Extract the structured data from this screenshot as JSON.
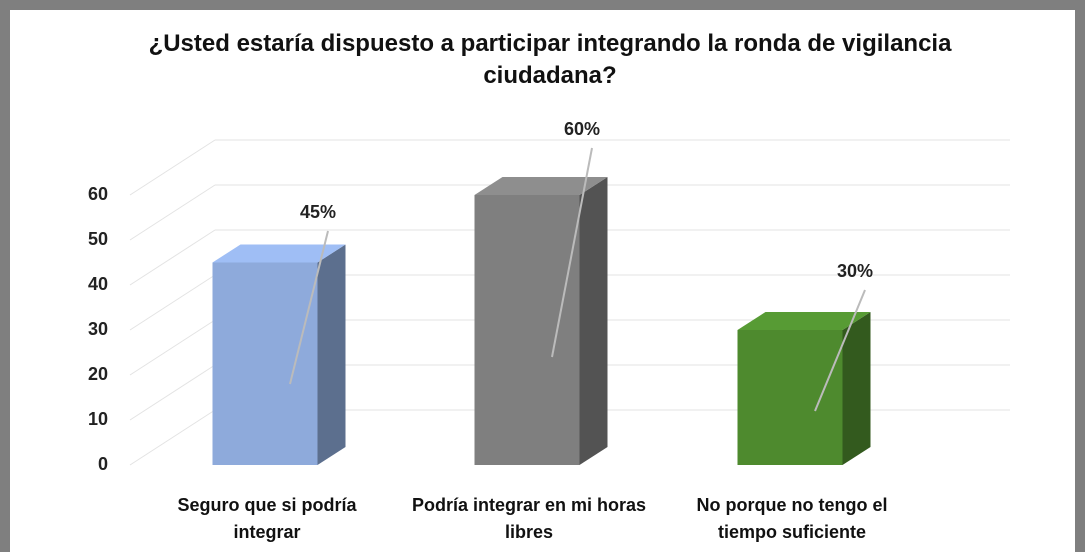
{
  "chart_data": {
    "type": "bar3d",
    "title": "¿Usted estaría dispuesto a participar integrando la ronda de vigilancia ciudadana?",
    "categories": [
      "Seguro que si podría integrar",
      "Podría integrar en mi horas libres",
      "No porque no tengo el tiempo suficiente"
    ],
    "values": [
      45,
      60,
      30
    ],
    "value_labels": [
      "45%",
      "60%",
      "30%"
    ],
    "colors": [
      "#8eaadb",
      "#7f7f7f",
      "#4e8a2e"
    ],
    "ylim": [
      0,
      60
    ],
    "yticks": [
      0,
      10,
      20,
      30,
      40,
      50,
      60
    ],
    "grid": true
  }
}
